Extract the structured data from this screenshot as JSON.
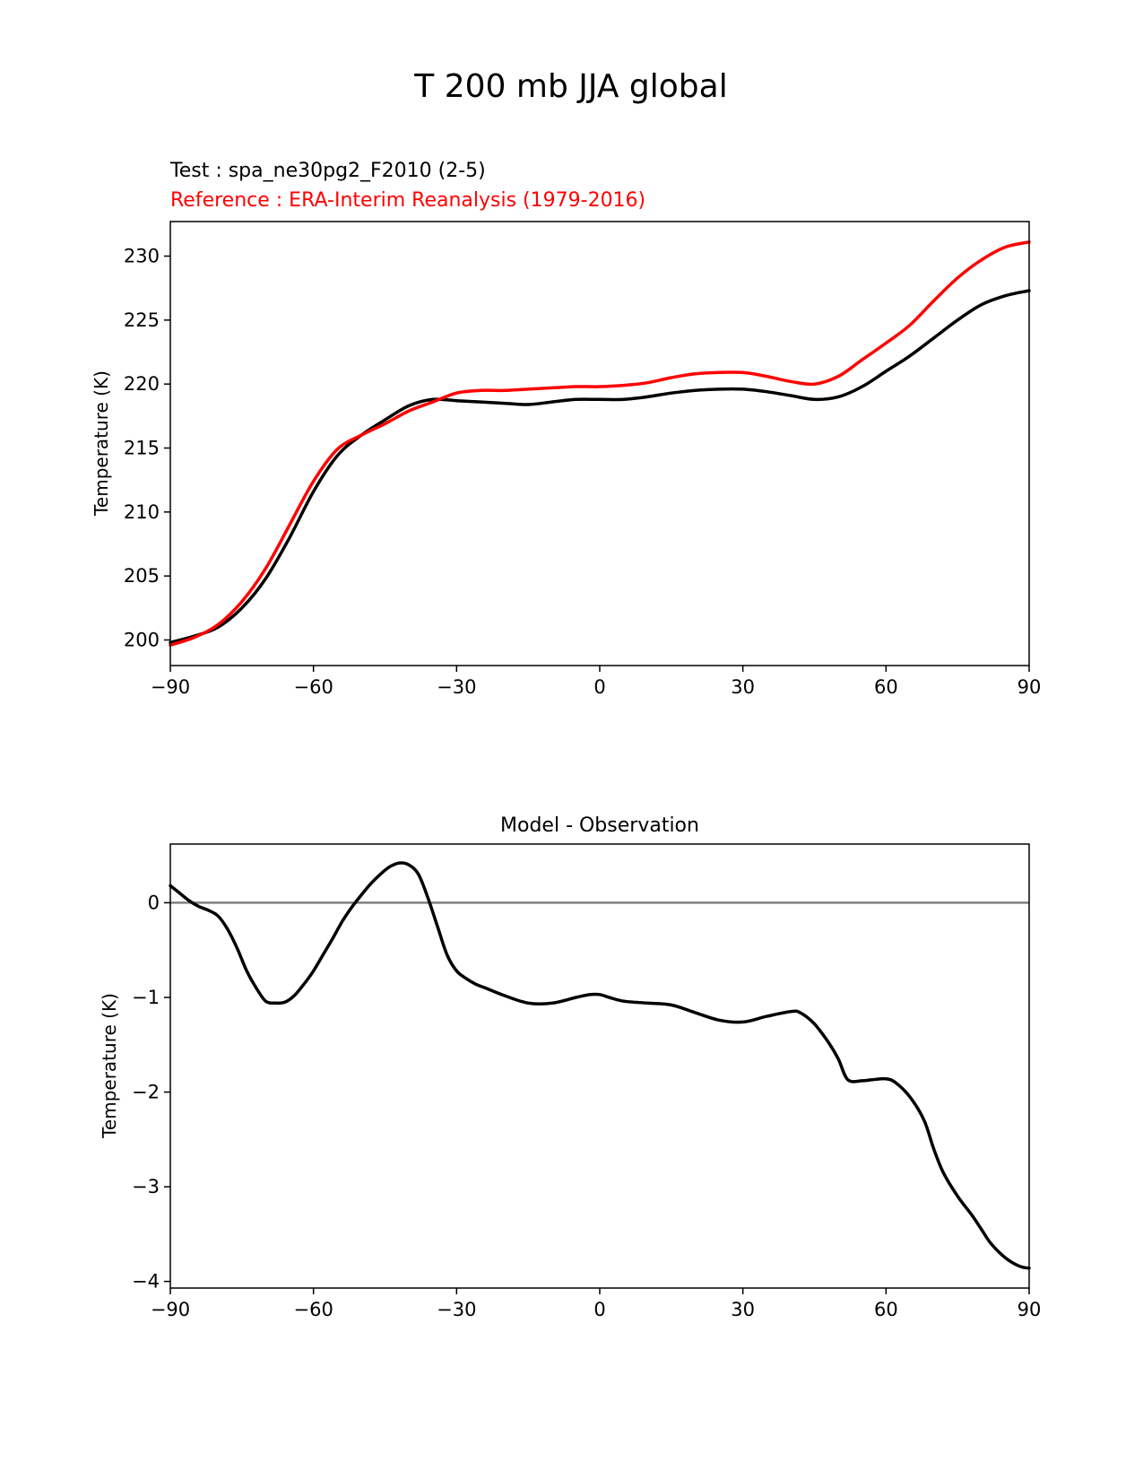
{
  "figure_title": "T 200 mb JJA global",
  "chart_data": [
    {
      "type": "line",
      "title_test": "Test : spa_ne30pg2_F2010 (2-5)",
      "title_reference": "Reference : ERA-Interim Reanalysis (1979-2016)",
      "xlabel": "",
      "ylabel": "Temperature (K)",
      "xlim": [
        -90,
        90
      ],
      "ylim": [
        198,
        232.7
      ],
      "xticks": [
        -90,
        -60,
        -30,
        0,
        30,
        60,
        90
      ],
      "xtick_labels": [
        "−90",
        "−60",
        "−30",
        "0",
        "30",
        "60",
        "90"
      ],
      "yticks": [
        200,
        205,
        210,
        215,
        220,
        225,
        230
      ],
      "ytick_labels": [
        "200",
        "205",
        "210",
        "215",
        "220",
        "225",
        "230"
      ],
      "colors": {
        "test": "#000000",
        "reference": "#ff0000"
      },
      "series": [
        {
          "key": "test",
          "x": [
            -90,
            -85,
            -80,
            -75,
            -70,
            -65,
            -60,
            -55,
            -50,
            -45,
            -40,
            -35,
            -30,
            -25,
            -20,
            -15,
            -10,
            -5,
            0,
            5,
            10,
            15,
            20,
            25,
            30,
            35,
            40,
            45,
            50,
            55,
            60,
            65,
            70,
            75,
            80,
            85,
            90
          ],
          "values": [
            199.8,
            200.3,
            201.0,
            202.5,
            204.8,
            208.0,
            211.6,
            214.4,
            216.0,
            217.2,
            218.3,
            218.8,
            218.7,
            218.6,
            218.5,
            218.4,
            218.6,
            218.8,
            218.8,
            218.8,
            219.0,
            219.3,
            219.5,
            219.6,
            219.6,
            219.4,
            219.1,
            218.8,
            219.0,
            219.8,
            221.0,
            222.2,
            223.6,
            225.0,
            226.2,
            226.9,
            227.3
          ]
        },
        {
          "key": "reference",
          "x": [
            -90,
            -85,
            -80,
            -75,
            -70,
            -65,
            -60,
            -55,
            -50,
            -45,
            -40,
            -35,
            -30,
            -25,
            -20,
            -15,
            -10,
            -5,
            0,
            5,
            10,
            15,
            20,
            25,
            30,
            35,
            40,
            45,
            50,
            55,
            60,
            65,
            70,
            75,
            80,
            85,
            90
          ],
          "values": [
            199.6,
            200.2,
            201.2,
            203.0,
            205.6,
            209.0,
            212.4,
            214.9,
            216.0,
            216.9,
            217.9,
            218.6,
            219.3,
            219.5,
            219.5,
            219.6,
            219.7,
            219.8,
            219.8,
            219.9,
            220.1,
            220.5,
            220.8,
            220.9,
            220.9,
            220.6,
            220.2,
            220.0,
            220.6,
            221.9,
            223.2,
            224.6,
            226.5,
            228.3,
            229.7,
            230.7,
            231.1
          ]
        }
      ]
    },
    {
      "type": "line",
      "title": "Model - Observation",
      "xlabel": "",
      "ylabel": "Temperature (K)",
      "xlim": [
        -90,
        90
      ],
      "ylim": [
        -4.07,
        0.62
      ],
      "xticks": [
        -90,
        -60,
        -30,
        0,
        30,
        60,
        90
      ],
      "xtick_labels": [
        "−90",
        "−60",
        "−30",
        "0",
        "30",
        "60",
        "90"
      ],
      "yticks": [
        0,
        -1,
        -2,
        -3,
        -4
      ],
      "ytick_labels": [
        "0",
        "−1",
        "−2",
        "−3",
        "−4"
      ],
      "zero_line_color": "#808080",
      "colors": {
        "difference": "#000000"
      },
      "series": [
        {
          "key": "difference",
          "x": [
            -90,
            -88,
            -86,
            -84,
            -82,
            -80,
            -78,
            -76,
            -74,
            -72,
            -70,
            -68,
            -66,
            -64,
            -62,
            -60,
            -58,
            -56,
            -54,
            -52,
            -50,
            -48,
            -46,
            -44,
            -42,
            -40,
            -38,
            -36,
            -34,
            -32,
            -30,
            -28,
            -26,
            -24,
            -20,
            -15,
            -10,
            -5,
            -2,
            0,
            2,
            5,
            10,
            15,
            20,
            25,
            30,
            35,
            40,
            42,
            45,
            48,
            50,
            52,
            55,
            57,
            60,
            62,
            65,
            68,
            70,
            72,
            75,
            78,
            80,
            82,
            85,
            88,
            90
          ],
          "values": [
            0.18,
            0.1,
            0.02,
            -0.04,
            -0.08,
            -0.14,
            -0.28,
            -0.48,
            -0.72,
            -0.9,
            -1.04,
            -1.06,
            -1.05,
            -0.98,
            -0.86,
            -0.72,
            -0.55,
            -0.38,
            -0.2,
            -0.05,
            0.08,
            0.2,
            0.3,
            0.38,
            0.42,
            0.4,
            0.3,
            0.05,
            -0.25,
            -0.55,
            -0.72,
            -0.8,
            -0.86,
            -0.9,
            -0.98,
            -1.06,
            -1.06,
            -1.0,
            -0.97,
            -0.97,
            -1.0,
            -1.04,
            -1.06,
            -1.08,
            -1.16,
            -1.24,
            -1.26,
            -1.2,
            -1.15,
            -1.16,
            -1.28,
            -1.48,
            -1.65,
            -1.87,
            -1.88,
            -1.87,
            -1.86,
            -1.9,
            -2.05,
            -2.3,
            -2.6,
            -2.85,
            -3.1,
            -3.3,
            -3.45,
            -3.6,
            -3.75,
            -3.84,
            -3.86
          ]
        }
      ]
    }
  ]
}
